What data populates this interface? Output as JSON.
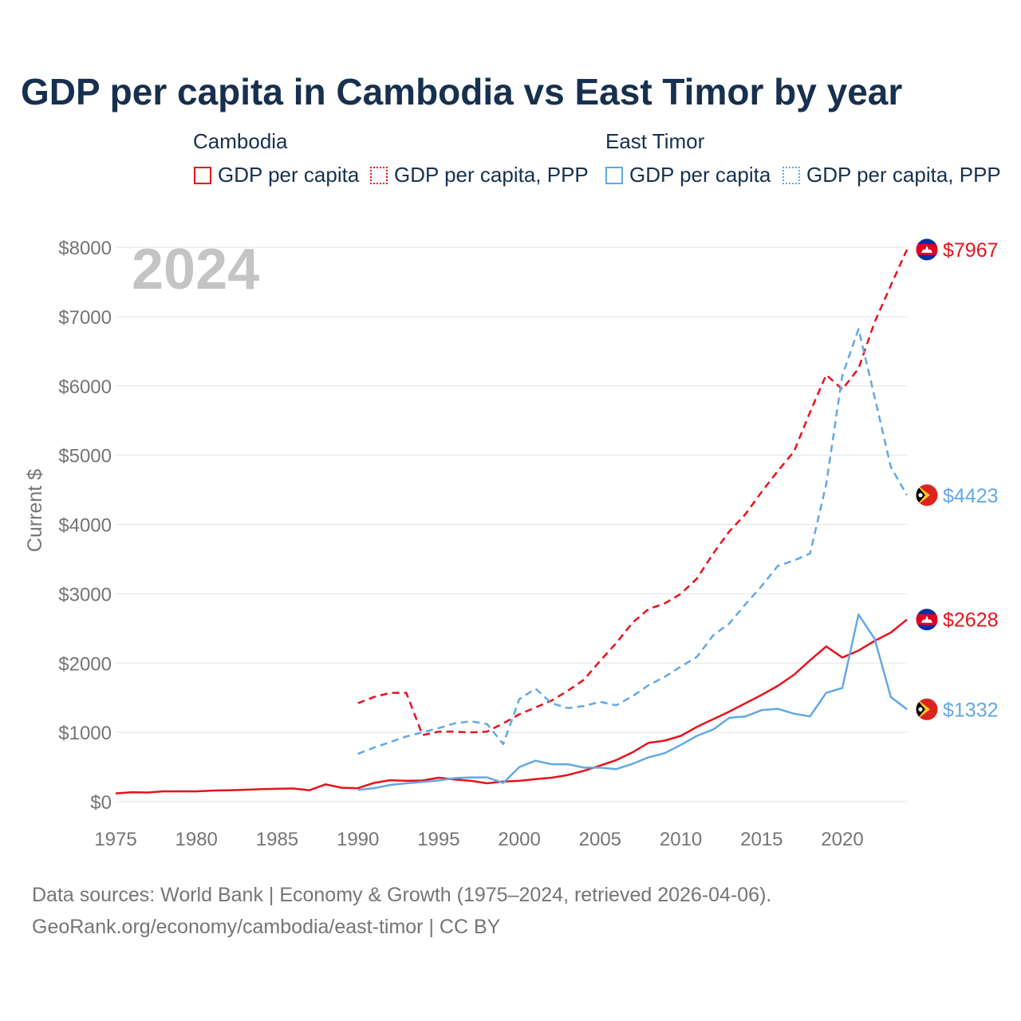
{
  "title": "GDP per capita in Cambodia vs East Timor by year",
  "legend": {
    "group1": "Cambodia",
    "group2": "East Timor",
    "items": [
      {
        "label": "GDP per capita",
        "country": "Cambodia",
        "style": "solid",
        "color": "#e8121c"
      },
      {
        "label": "GDP per capita, PPP",
        "country": "Cambodia",
        "style": "dotted",
        "color": "#e8121c"
      },
      {
        "label": "GDP per capita",
        "country": "East Timor",
        "style": "solid",
        "color": "#62a8e6"
      },
      {
        "label": "GDP per capita, PPP",
        "country": "East Timor",
        "style": "dotted",
        "color": "#62a8e6"
      }
    ]
  },
  "footer": {
    "line1": "Data sources: World Bank | Economy & Growth (1975–2024, retrieved 2026-04-06).",
    "line2": "GeoRank.org/economy/cambodia/east-timor | CC BY"
  },
  "chart_data": {
    "type": "line",
    "title": "GDP per capita in Cambodia vs East Timor by year",
    "year_watermark": "2024",
    "xlabel": "",
    "ylabel": "Current $",
    "xlim": [
      1975,
      2024
    ],
    "ylim": [
      0,
      8000
    ],
    "x_ticks": [
      1975,
      1980,
      1985,
      1990,
      1995,
      2000,
      2005,
      2010,
      2015,
      2020
    ],
    "y_ticks": [
      0,
      1000,
      2000,
      3000,
      4000,
      5000,
      6000,
      7000,
      8000
    ],
    "y_tick_labels": [
      "$0",
      "$1000",
      "$2000",
      "$3000",
      "$4000",
      "$5000",
      "$6000",
      "$7000",
      "$8000"
    ],
    "grid": true,
    "series": [
      {
        "name": "Cambodia GDP per capita",
        "color": "#e8121c",
        "dash": "solid",
        "end_label": "$2628",
        "flag": "cambodia",
        "x": [
          1975,
          1976,
          1977,
          1978,
          1979,
          1980,
          1981,
          1982,
          1983,
          1984,
          1985,
          1986,
          1987,
          1988,
          1989,
          1990,
          1991,
          1992,
          1993,
          1994,
          1995,
          1996,
          1997,
          1998,
          1999,
          2000,
          2001,
          2002,
          2003,
          2004,
          2005,
          2006,
          2007,
          2008,
          2009,
          2010,
          2011,
          2012,
          2013,
          2014,
          2015,
          2016,
          2017,
          2018,
          2019,
          2020,
          2021,
          2022,
          2023,
          2024
        ],
        "y": [
          120,
          135,
          132,
          150,
          148,
          148,
          160,
          165,
          172,
          180,
          185,
          190,
          165,
          250,
          200,
          195,
          270,
          310,
          300,
          305,
          345,
          320,
          300,
          265,
          290,
          300,
          325,
          345,
          385,
          445,
          520,
          600,
          710,
          850,
          880,
          950,
          1080,
          1190,
          1300,
          1420,
          1540,
          1670,
          1830,
          2040,
          2240,
          2080,
          2180,
          2320,
          2440,
          2628
        ]
      },
      {
        "name": "Cambodia GDP per capita, PPP",
        "color": "#e8121c",
        "dash": "dashed",
        "end_label": "$7967",
        "flag": "cambodia",
        "x": [
          1990,
          1991,
          1992,
          1993,
          1994,
          1995,
          1996,
          1997,
          1998,
          1999,
          2000,
          2001,
          2002,
          2003,
          2004,
          2005,
          2006,
          2007,
          2008,
          2009,
          2010,
          2011,
          2012,
          2013,
          2014,
          2015,
          2016,
          2017,
          2018,
          2019,
          2020,
          2021,
          2022,
          2023,
          2024
        ],
        "y": [
          1420,
          1510,
          1570,
          1570,
          960,
          1010,
          1010,
          1000,
          1010,
          1130,
          1260,
          1360,
          1460,
          1600,
          1760,
          2030,
          2290,
          2580,
          2780,
          2860,
          3000,
          3220,
          3580,
          3900,
          4150,
          4470,
          4770,
          5050,
          5620,
          6160,
          5950,
          6250,
          6920,
          7450,
          7967
        ]
      },
      {
        "name": "East Timor GDP per capita",
        "color": "#62a8e6",
        "dash": "solid",
        "end_label": "$1332",
        "flag": "east-timor",
        "x": [
          1990,
          1991,
          1992,
          1993,
          1994,
          1995,
          1996,
          1997,
          1998,
          1999,
          2000,
          2001,
          2002,
          2003,
          2004,
          2005,
          2006,
          2007,
          2008,
          2009,
          2010,
          2011,
          2012,
          2013,
          2014,
          2015,
          2016,
          2017,
          2018,
          2019,
          2020,
          2021,
          2022,
          2023,
          2024
        ],
        "y": [
          170,
          195,
          240,
          265,
          285,
          305,
          340,
          350,
          350,
          270,
          500,
          590,
          540,
          540,
          490,
          490,
          470,
          545,
          640,
          700,
          820,
          950,
          1040,
          1210,
          1230,
          1320,
          1340,
          1270,
          1230,
          1570,
          1640,
          2700,
          2350,
          1510,
          1332
        ]
      },
      {
        "name": "East Timor GDP per capita, PPP",
        "color": "#62a8e6",
        "dash": "dashed",
        "end_label": "$4423",
        "flag": "east-timor",
        "x": [
          1990,
          1991,
          1992,
          1993,
          1994,
          1995,
          1996,
          1997,
          1998,
          1999,
          2000,
          2001,
          2002,
          2003,
          2004,
          2005,
          2006,
          2007,
          2008,
          2009,
          2010,
          2011,
          2012,
          2013,
          2014,
          2015,
          2016,
          2017,
          2018,
          2019,
          2020,
          2021,
          2022,
          2023,
          2024
        ],
        "y": [
          690,
          780,
          860,
          940,
          1000,
          1060,
          1130,
          1160,
          1120,
          830,
          1480,
          1630,
          1420,
          1350,
          1380,
          1440,
          1390,
          1520,
          1680,
          1800,
          1950,
          2090,
          2400,
          2570,
          2850,
          3110,
          3400,
          3480,
          3580,
          4580,
          6150,
          6820,
          5840,
          4830,
          4423
        ]
      }
    ]
  }
}
